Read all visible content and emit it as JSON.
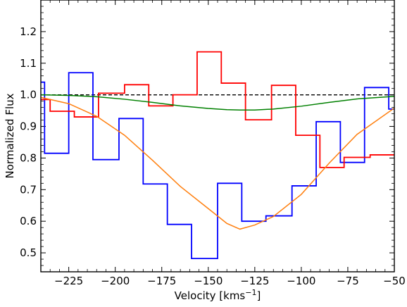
{
  "chart_data": {
    "type": "line",
    "title": "",
    "xlabel": "Velocity [kms",
    "xlabel_sup": "−1",
    "xlabel_close": "]",
    "ylabel": "Normalized Flux",
    "xlim": [
      -240,
      -50
    ],
    "ylim": [
      0.44,
      1.3
    ],
    "xticks": [
      -225,
      -200,
      -175,
      -150,
      -125,
      -100,
      -75,
      -50
    ],
    "xtick_labels": [
      "−225",
      "−200",
      "−175",
      "−150",
      "−125",
      "−100",
      "−75",
      "−50"
    ],
    "yticks": [
      0.5,
      0.6,
      0.7,
      0.8,
      0.9,
      1.0,
      1.1,
      1.2
    ],
    "ytick_labels": [
      "0.5",
      "0.6",
      "0.7",
      "0.8",
      "0.9",
      "1.0",
      "1.1",
      "1.2"
    ],
    "grid": false,
    "reference_line": {
      "y": 1.0,
      "style": "dashed",
      "color": "#000000"
    },
    "series": [
      {
        "id": "blue-step",
        "style": "step",
        "color": "#0000ff",
        "edges": [
          -240,
          -238,
          -225,
          -212,
          -198,
          -185,
          -172,
          -159,
          -145,
          -132,
          -119,
          -105,
          -92,
          -79,
          -66,
          -53,
          -50
        ],
        "values": [
          1.04,
          0.815,
          1.07,
          0.795,
          0.925,
          0.718,
          0.59,
          0.482,
          0.72,
          0.6,
          0.617,
          0.712,
          0.915,
          0.786,
          1.023,
          0.955
        ]
      },
      {
        "id": "red-step",
        "style": "step",
        "color": "#ff0000",
        "edges": [
          -240,
          -235,
          -222,
          -209,
          -195,
          -182,
          -169,
          -156,
          -143,
          -130,
          -116,
          -103,
          -90,
          -77,
          -63,
          -50
        ],
        "values": [
          0.985,
          0.948,
          0.93,
          1.005,
          1.032,
          0.965,
          1.0,
          1.136,
          1.037,
          0.921,
          1.03,
          0.872,
          0.77,
          0.802,
          0.81
        ]
      },
      {
        "id": "orange-curve",
        "style": "line",
        "color": "#ff7f0e",
        "x": [
          -240,
          -225,
          -210,
          -195,
          -180,
          -165,
          -150,
          -140,
          -133,
          -125,
          -115,
          -100,
          -85,
          -70,
          -50
        ],
        "y": [
          0.992,
          0.972,
          0.932,
          0.872,
          0.793,
          0.71,
          0.64,
          0.593,
          0.575,
          0.588,
          0.615,
          0.685,
          0.784,
          0.875,
          0.958
        ]
      },
      {
        "id": "green-curve",
        "style": "line",
        "color": "#008000",
        "x": [
          -240,
          -225,
          -210,
          -195,
          -180,
          -165,
          -150,
          -140,
          -133,
          -125,
          -115,
          -100,
          -85,
          -70,
          -50
        ],
        "y": [
          1.0,
          0.998,
          0.994,
          0.986,
          0.976,
          0.965,
          0.957,
          0.953,
          0.952,
          0.952,
          0.955,
          0.964,
          0.976,
          0.987,
          0.995
        ]
      }
    ]
  }
}
